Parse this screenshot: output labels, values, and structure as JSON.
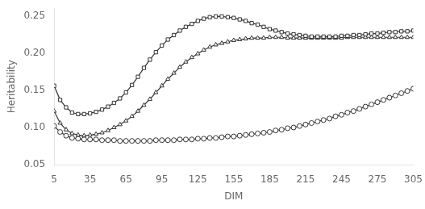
{
  "chart_data": {
    "type": "line",
    "xlabel": "DIM",
    "ylabel": "Heritability",
    "x": [
      5,
      10,
      15,
      20,
      25,
      30,
      35,
      40,
      45,
      50,
      55,
      60,
      65,
      70,
      75,
      80,
      85,
      90,
      95,
      100,
      105,
      110,
      115,
      120,
      125,
      130,
      135,
      140,
      145,
      150,
      155,
      160,
      165,
      170,
      175,
      180,
      185,
      190,
      195,
      200,
      205,
      210,
      215,
      220,
      225,
      230,
      235,
      240,
      245,
      250,
      255,
      260,
      265,
      270,
      275,
      280,
      285,
      290,
      295,
      300,
      305
    ],
    "series": [
      {
        "color": "#333333",
        "marker": "square",
        "values": [
          0.156,
          0.137,
          0.127,
          0.12,
          0.118,
          0.118,
          0.119,
          0.121,
          0.124,
          0.128,
          0.133,
          0.139,
          0.147,
          0.157,
          0.168,
          0.18,
          0.191,
          0.201,
          0.21,
          0.218,
          0.224,
          0.23,
          0.235,
          0.239,
          0.243,
          0.246,
          0.248,
          0.249,
          0.249,
          0.248,
          0.247,
          0.245,
          0.243,
          0.24,
          0.238,
          0.235,
          0.232,
          0.23,
          0.228,
          0.226,
          0.225,
          0.224,
          0.223,
          0.222,
          0.222,
          0.222,
          0.222,
          0.222,
          0.223,
          0.223,
          0.224,
          0.224,
          0.225,
          0.226,
          0.226,
          0.227,
          0.228,
          0.228,
          0.229,
          0.229,
          0.23
        ]
      },
      {
        "color": "#333333",
        "marker": "triangle",
        "values": [
          0.122,
          0.106,
          0.097,
          0.092,
          0.09,
          0.089,
          0.09,
          0.091,
          0.093,
          0.096,
          0.1,
          0.104,
          0.109,
          0.115,
          0.122,
          0.13,
          0.138,
          0.147,
          0.156,
          0.165,
          0.173,
          0.181,
          0.188,
          0.194,
          0.199,
          0.204,
          0.208,
          0.211,
          0.213,
          0.215,
          0.217,
          0.218,
          0.219,
          0.22,
          0.22,
          0.22,
          0.221,
          0.221,
          0.221,
          0.22,
          0.22,
          0.22,
          0.22,
          0.22,
          0.22,
          0.22,
          0.22,
          0.22,
          0.22,
          0.221,
          0.221,
          0.221,
          0.221,
          0.221,
          0.221,
          0.221,
          0.221,
          0.221,
          0.221,
          0.221,
          0.221
        ]
      },
      {
        "color": "#333333",
        "marker": "circle",
        "values": [
          0.102,
          0.094,
          0.089,
          0.086,
          0.085,
          0.084,
          0.084,
          0.084,
          0.083,
          0.083,
          0.083,
          0.082,
          0.082,
          0.082,
          0.082,
          0.082,
          0.082,
          0.083,
          0.083,
          0.083,
          0.083,
          0.084,
          0.084,
          0.084,
          0.085,
          0.085,
          0.086,
          0.086,
          0.087,
          0.088,
          0.088,
          0.089,
          0.09,
          0.091,
          0.092,
          0.093,
          0.094,
          0.096,
          0.097,
          0.099,
          0.1,
          0.102,
          0.104,
          0.106,
          0.108,
          0.11,
          0.112,
          0.115,
          0.117,
          0.12,
          0.122,
          0.125,
          0.128,
          0.131,
          0.134,
          0.137,
          0.14,
          0.143,
          0.146,
          0.149,
          0.152
        ]
      }
    ],
    "xlim": [
      5,
      305
    ],
    "xticks": [
      5,
      35,
      65,
      95,
      125,
      155,
      185,
      215,
      245,
      275,
      305
    ],
    "ylim": [
      0.05,
      0.26
    ],
    "yticks": [
      0.05,
      {
        "value": 0.1,
        "label": "0.10"
      },
      0.15,
      {
        "value": 0.2,
        "label": "0.20"
      },
      0.25
    ],
    "grid": false
  }
}
